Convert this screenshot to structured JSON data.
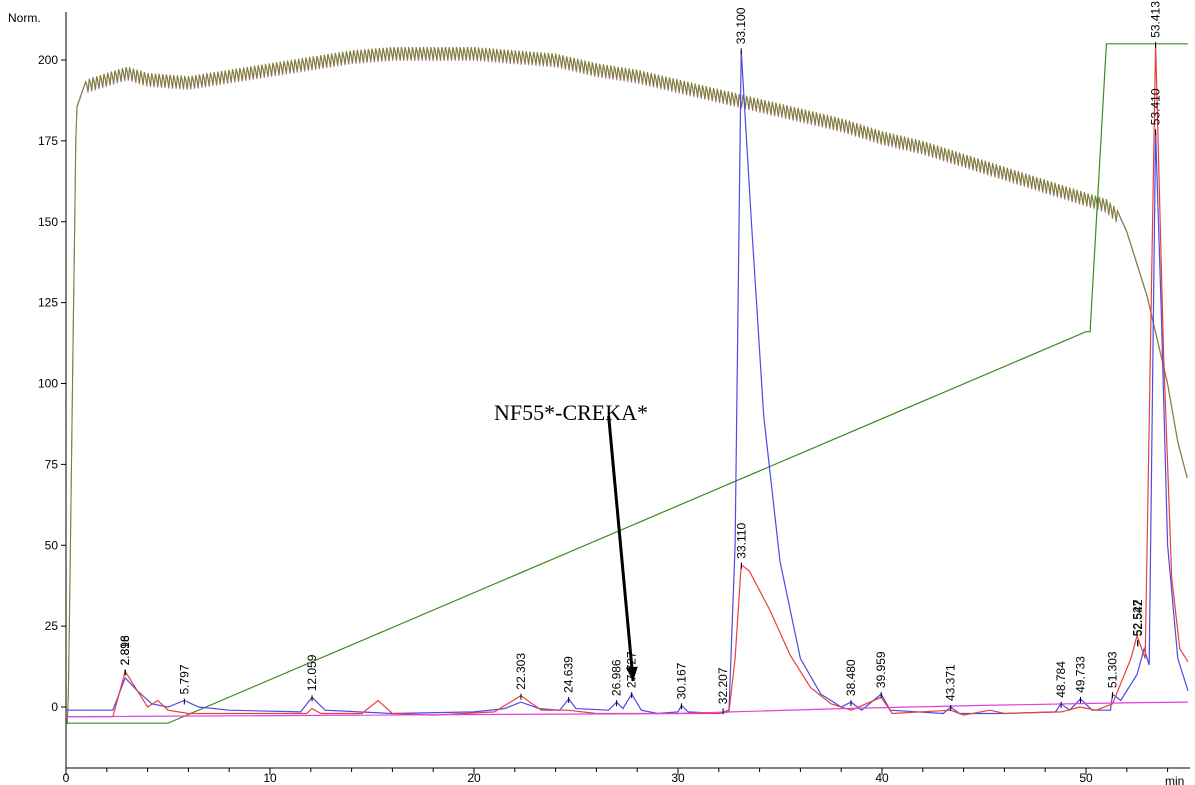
{
  "chart_data": {
    "type": "line",
    "ylabel": "Norm.",
    "xlabel": "min",
    "xlim": [
      0,
      55
    ],
    "ylim": [
      -10,
      215
    ],
    "x_ticks": [
      0,
      10,
      20,
      30,
      40,
      50
    ],
    "y_ticks": [
      0,
      25,
      50,
      75,
      100,
      125,
      150,
      175,
      200
    ],
    "grid": false,
    "legend": "none",
    "series": [
      {
        "color": "#7f7f3a",
        "style": "noisy",
        "points": [
          [
            0,
            -5
          ],
          [
            0.1,
            -5
          ],
          [
            0.5,
            185
          ],
          [
            1,
            194
          ],
          [
            2,
            196
          ],
          [
            3,
            198
          ],
          [
            4,
            196
          ],
          [
            6,
            195
          ],
          [
            8,
            197
          ],
          [
            10,
            199
          ],
          [
            12,
            201
          ],
          [
            14,
            203
          ],
          [
            16,
            204
          ],
          [
            18,
            204
          ],
          [
            20,
            204
          ],
          [
            22,
            203
          ],
          [
            24,
            202
          ],
          [
            26,
            199
          ],
          [
            28,
            197
          ],
          [
            30,
            194
          ],
          [
            32,
            191
          ],
          [
            34,
            188
          ],
          [
            36,
            185
          ],
          [
            38,
            182
          ],
          [
            40,
            178
          ],
          [
            42,
            175
          ],
          [
            44,
            171
          ],
          [
            46,
            167
          ],
          [
            48,
            163
          ],
          [
            50,
            159
          ],
          [
            51,
            157
          ],
          [
            51.5,
            154
          ],
          [
            52,
            147
          ],
          [
            53,
            127
          ],
          [
            54,
            100
          ],
          [
            54.5,
            82
          ],
          [
            55,
            70
          ]
        ]
      },
      {
        "color": "#3c8b1e",
        "style": "solid",
        "points": [
          [
            0,
            -5
          ],
          [
            5,
            -5
          ],
          [
            50,
            116
          ],
          [
            50.2,
            116
          ],
          [
            51,
            205
          ],
          [
            55,
            205
          ]
        ]
      },
      {
        "color": "#4b4be6",
        "style": "solid",
        "points": [
          [
            0,
            -1
          ],
          [
            2.3,
            -1
          ],
          [
            2.9,
            9
          ],
          [
            3.5,
            5
          ],
          [
            4.2,
            1
          ],
          [
            5,
            0
          ],
          [
            5.8,
            2
          ],
          [
            6.5,
            0
          ],
          [
            8,
            -1
          ],
          [
            11.5,
            -1.5
          ],
          [
            12.06,
            3
          ],
          [
            12.7,
            -1
          ],
          [
            16,
            -2
          ],
          [
            20,
            -1.5
          ],
          [
            21.5,
            -0.5
          ],
          [
            22.3,
            1.5
          ],
          [
            23.2,
            -0.5
          ],
          [
            24.2,
            -1
          ],
          [
            24.64,
            2.5
          ],
          [
            25,
            -0.5
          ],
          [
            26.6,
            -1
          ],
          [
            26.99,
            1.5
          ],
          [
            27.3,
            -0.5
          ],
          [
            27.73,
            4
          ],
          [
            28.2,
            -1
          ],
          [
            29,
            -2
          ],
          [
            30,
            -1.5
          ],
          [
            30.17,
            0.5
          ],
          [
            30.5,
            -1.5
          ],
          [
            32,
            -2
          ],
          [
            32.5,
            -1
          ],
          [
            32.8,
            50
          ],
          [
            33.1,
            203
          ],
          [
            33.6,
            150
          ],
          [
            34.2,
            90
          ],
          [
            35,
            45
          ],
          [
            36,
            15
          ],
          [
            37,
            4
          ],
          [
            38,
            0
          ],
          [
            38.48,
            1.5
          ],
          [
            39,
            -1
          ],
          [
            39.96,
            4
          ],
          [
            40.4,
            -1
          ],
          [
            43,
            -2
          ],
          [
            43.37,
            0
          ],
          [
            43.8,
            -2
          ],
          [
            46,
            -2
          ],
          [
            48.5,
            -1.5
          ],
          [
            48.78,
            1
          ],
          [
            49.2,
            -1
          ],
          [
            49.73,
            2.5
          ],
          [
            50.3,
            -1
          ],
          [
            51.2,
            -1
          ],
          [
            51.3,
            4
          ],
          [
            51.7,
            2
          ],
          [
            52.5,
            10
          ],
          [
            52.85,
            18
          ],
          [
            53.1,
            13
          ],
          [
            53.41,
            178
          ],
          [
            53.7,
            120
          ],
          [
            54,
            50
          ],
          [
            54.5,
            15
          ],
          [
            55,
            5
          ]
        ]
      },
      {
        "color": "#e8413a",
        "style": "solid",
        "points": [
          [
            0,
            -3
          ],
          [
            2.3,
            -3
          ],
          [
            2.9,
            11
          ],
          [
            3.4,
            6
          ],
          [
            4,
            0
          ],
          [
            4.5,
            2
          ],
          [
            5,
            -1
          ],
          [
            6,
            -2
          ],
          [
            9,
            -2
          ],
          [
            11.8,
            -2
          ],
          [
            12.06,
            -0.5
          ],
          [
            12.5,
            -2
          ],
          [
            14.5,
            -2
          ],
          [
            15.3,
            2
          ],
          [
            16,
            -2
          ],
          [
            18,
            -2.5
          ],
          [
            21,
            -1.5
          ],
          [
            22.3,
            3.5
          ],
          [
            23.3,
            -1
          ],
          [
            24.6,
            -1
          ],
          [
            26,
            -2
          ],
          [
            28,
            -2
          ],
          [
            30,
            -2
          ],
          [
            32,
            -2
          ],
          [
            32.5,
            -1.5
          ],
          [
            32.8,
            15
          ],
          [
            33.1,
            44
          ],
          [
            33.5,
            42
          ],
          [
            34.5,
            30
          ],
          [
            35.5,
            16
          ],
          [
            36.5,
            6
          ],
          [
            37.5,
            1
          ],
          [
            38.5,
            -1
          ],
          [
            39.96,
            3
          ],
          [
            40.5,
            -2
          ],
          [
            43.37,
            -1
          ],
          [
            44,
            -2.5
          ],
          [
            45.3,
            -1
          ],
          [
            46,
            -2
          ],
          [
            48.8,
            -1.5
          ],
          [
            49.7,
            0
          ],
          [
            50.5,
            -1
          ],
          [
            51.3,
            1
          ],
          [
            52.2,
            15
          ],
          [
            52.5,
            22
          ],
          [
            52.9,
            15
          ],
          [
            53.41,
            205
          ],
          [
            53.8,
            110
          ],
          [
            54.2,
            40
          ],
          [
            54.6,
            18
          ],
          [
            55,
            14
          ]
        ]
      },
      {
        "color": "#e040e0",
        "style": "solid",
        "points": [
          [
            0,
            -3
          ],
          [
            30,
            -2
          ],
          [
            38,
            -0.5
          ],
          [
            45,
            0.5
          ],
          [
            51,
            1.2
          ],
          [
            55,
            1.5
          ]
        ]
      }
    ],
    "peak_labels": [
      {
        "text": "2.818",
        "x": 2.9,
        "y": 11
      },
      {
        "text": "2.896",
        "x": 2.9,
        "y": 11
      },
      {
        "text": "5.797",
        "x": 5.8,
        "y": 2
      },
      {
        "text": "12.059",
        "x": 12.06,
        "y": 3
      },
      {
        "text": "22.303",
        "x": 22.3,
        "y": 3.5
      },
      {
        "text": "24.639",
        "x": 24.64,
        "y": 2.5
      },
      {
        "text": "26.986",
        "x": 26.99,
        "y": 1.5
      },
      {
        "text": "27.727",
        "x": 27.73,
        "y": 4
      },
      {
        "text": "30.167",
        "x": 30.17,
        "y": 0.5
      },
      {
        "text": "32.207",
        "x": 32.21,
        "y": -1
      },
      {
        "text": "33.100",
        "x": 33.1,
        "y": 203
      },
      {
        "text": "33.110",
        "x": 33.11,
        "y": 44
      },
      {
        "text": "38.480",
        "x": 38.48,
        "y": 1.5
      },
      {
        "text": "39.959",
        "x": 39.96,
        "y": 4
      },
      {
        "text": "43.371",
        "x": 43.37,
        "y": 0
      },
      {
        "text": "48.784",
        "x": 48.78,
        "y": 1
      },
      {
        "text": "49.733",
        "x": 49.73,
        "y": 2.5
      },
      {
        "text": "51.303",
        "x": 51.3,
        "y": 4
      },
      {
        "text": "52.527",
        "x": 52.53,
        "y": 20
      },
      {
        "text": "52.542",
        "x": 52.54,
        "y": 20
      },
      {
        "text": "53.410",
        "x": 53.41,
        "y": 178
      },
      {
        "text": "53.413",
        "x": 53.41,
        "y": 205
      }
    ],
    "annotation": {
      "text": "NF55*-CREKA*",
      "arrow_from": [
        26.6,
        90
      ],
      "arrow_to": [
        27.8,
        8
      ]
    }
  }
}
